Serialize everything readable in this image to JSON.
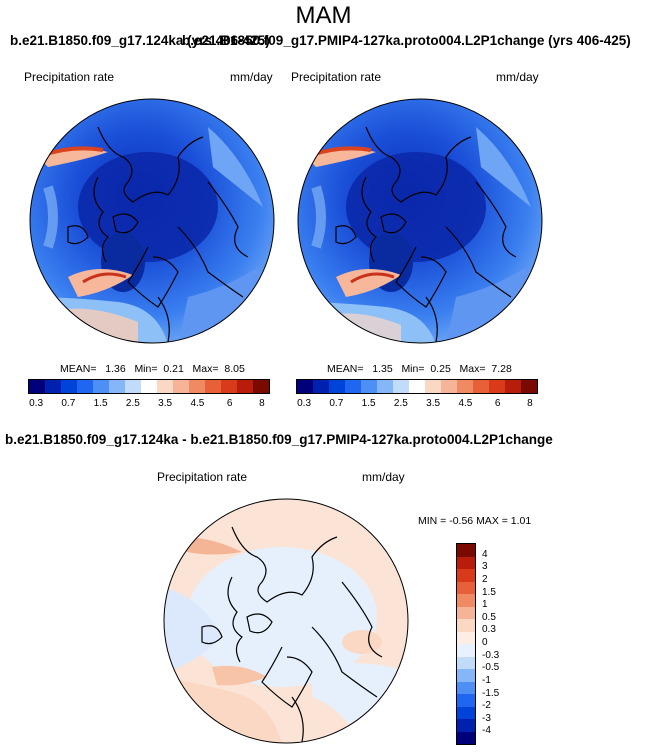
{
  "title": "MAM",
  "top_subtitle_left": "b.e21.B1850.f09_g17.124ka (yrs 406-425)",
  "top_subtitle_right": "b.e21.B1850.f09_g17.PMIP4-127ka.proto004.L2P1change (yrs 406-425)",
  "diff_subtitle": "b.e21.B1850.f09_g17.124ka - b.e21.B1850.f09_g17.PMIP4-127ka.proto004.L2P1change",
  "variable_label": "Precipitation rate",
  "units_label": "mm/day",
  "panels": [
    {
      "mean": "1.36",
      "min": "0.21",
      "max": "8.05"
    },
    {
      "mean": "1.35",
      "min": "0.25",
      "max": "7.28"
    }
  ],
  "stats_labels": {
    "mean": "MEAN=",
    "min": "Min=",
    "max": "Max="
  },
  "diff_minmax": "MIN =  -0.56 MAX =   1.01",
  "colorbar_ticks": [
    "0.3",
    "0.7",
    "1.5",
    "2.5",
    "3.5",
    "4.5",
    "6",
    "8"
  ],
  "colorbar_colors": [
    "#00007a",
    "#0020b0",
    "#0043d8",
    "#1f66f0",
    "#4d8ff5",
    "#85b6f7",
    "#c0dcf9",
    "#ffffff",
    "#fbd8c4",
    "#f5b497",
    "#ef8a63",
    "#e8603a",
    "#d93a1a",
    "#b81c0a",
    "#7a0a00"
  ],
  "diff_ticks": [
    "4",
    "3",
    "2",
    "1.5",
    "1",
    "0.5",
    "0.3",
    "0",
    "-0.3",
    "-0.5",
    "-1",
    "-1.5",
    "-2",
    "-3",
    "-4"
  ],
  "diff_colors": [
    "#7a0a00",
    "#b81c0a",
    "#d93a1a",
    "#e8603a",
    "#ef8a63",
    "#f5b497",
    "#fbd8c4",
    "#fdeee5",
    "#e8f1fd",
    "#c0dcf9",
    "#85b6f7",
    "#4d8ff5",
    "#1f66f0",
    "#0043d8",
    "#0020b0",
    "#00007a"
  ]
}
